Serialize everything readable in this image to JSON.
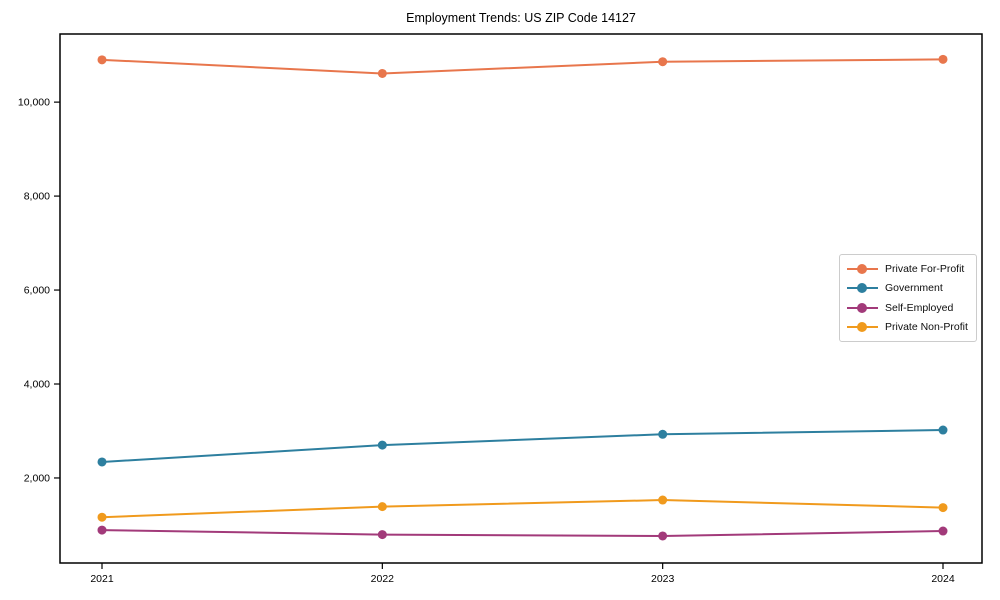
{
  "chart_data": {
    "type": "line",
    "title": "Employment Trends: US ZIP Code 14127",
    "xlabel": "",
    "ylabel": "",
    "x": [
      2021,
      2022,
      2023,
      2024
    ],
    "x_tick_labels": [
      "2021",
      "2022",
      "2023",
      "2024"
    ],
    "series": [
      {
        "name": "Private For-Profit",
        "color": "#e8764c",
        "values": [
          10900,
          10610,
          10860,
          10910
        ]
      },
      {
        "name": "Government",
        "color": "#2d7f9f",
        "values": [
          2340,
          2700,
          2930,
          3020
        ]
      },
      {
        "name": "Self-Employed",
        "color": "#a23a7a",
        "values": [
          890,
          795,
          765,
          870
        ]
      },
      {
        "name": "Private Non-Profit",
        "color": "#f09a1d",
        "values": [
          1165,
          1390,
          1530,
          1370
        ]
      }
    ],
    "yticks": [
      2000,
      4000,
      6000,
      8000,
      10000
    ],
    "ytick_labels": [
      "2,000",
      "4,000",
      "6,000",
      "8,000",
      "10,000"
    ],
    "ylim": [
      190,
      11450
    ],
    "grid": false,
    "marker": "circle",
    "legend_position": "center-right",
    "axis_color": "#000000",
    "background_color": "#ffffff"
  }
}
